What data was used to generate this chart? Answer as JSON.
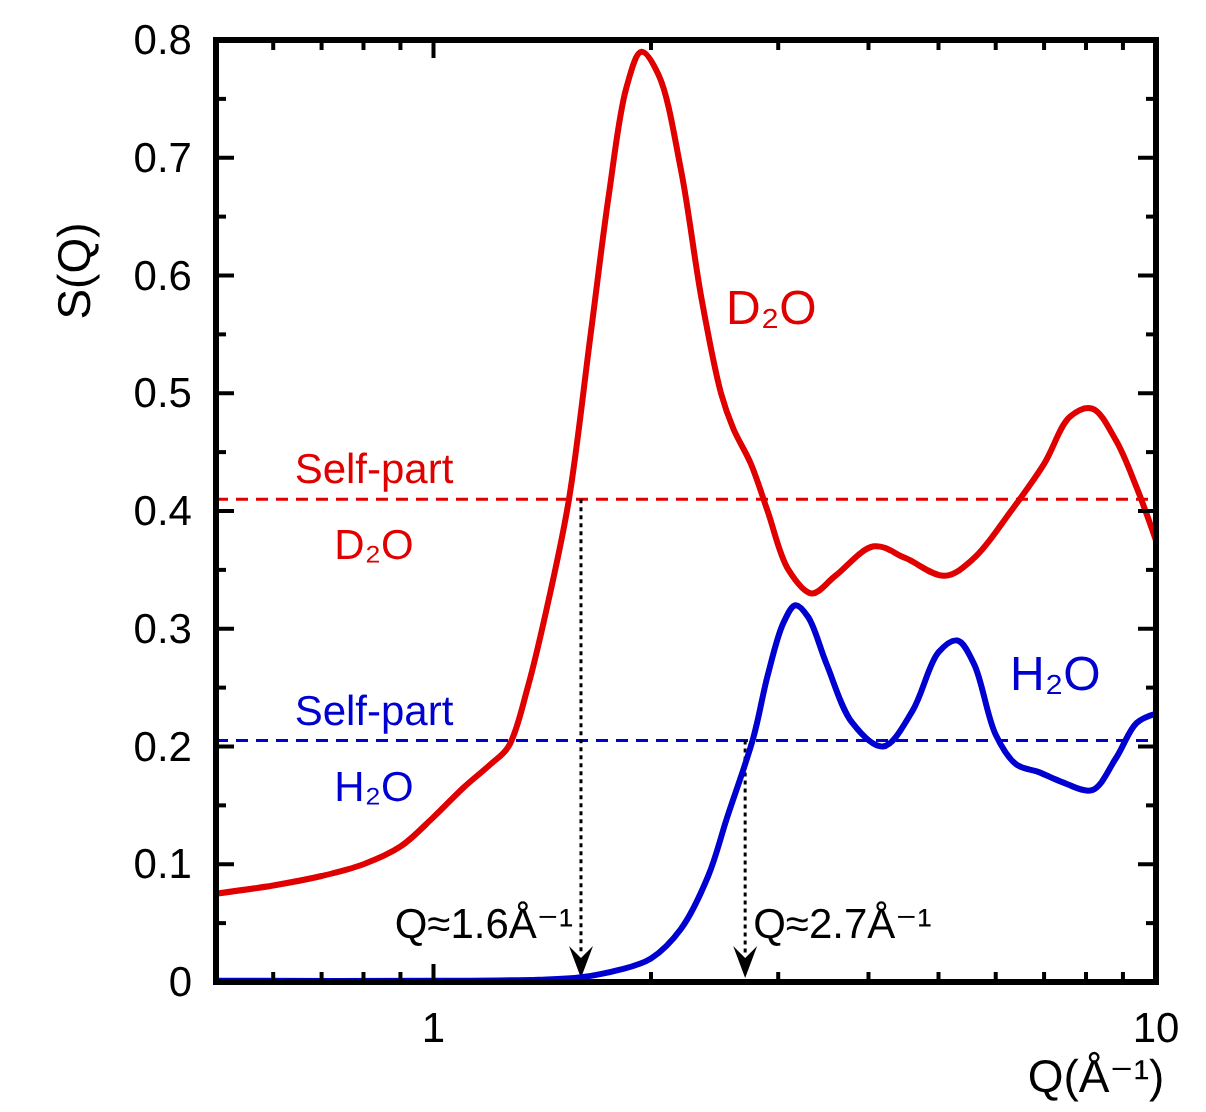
{
  "chart_data": {
    "type": "line",
    "xlabel": "Q(Å⁻¹)",
    "ylabel": "S(Q)",
    "log": "x",
    "xlim": [
      0.5,
      10
    ],
    "ylim": [
      0,
      0.8
    ],
    "xticks": [
      {
        "value": 0.5,
        "label": null
      },
      {
        "value": 0.6,
        "label": null
      },
      {
        "value": 0.7,
        "label": null
      },
      {
        "value": 0.8,
        "label": null
      },
      {
        "value": 0.9,
        "label": null
      },
      1,
      {
        "value": 2,
        "label": null
      },
      {
        "value": 3,
        "label": null
      },
      {
        "value": 4,
        "label": null
      },
      {
        "value": 5,
        "label": null
      },
      {
        "value": 6,
        "label": null
      },
      {
        "value": 7,
        "label": null
      },
      {
        "value": 8,
        "label": null
      },
      {
        "value": 9,
        "label": null
      },
      10
    ],
    "yticks": [
      0,
      {
        "value": 0.05,
        "label": null
      },
      0.1,
      {
        "value": 0.15,
        "label": null
      },
      0.2,
      {
        "value": 0.25,
        "label": null
      },
      0.3,
      {
        "value": 0.35,
        "label": null
      },
      0.4,
      {
        "value": 0.45,
        "label": null
      },
      0.5,
      {
        "value": 0.55,
        "label": null
      },
      0.6,
      {
        "value": 0.65,
        "label": null
      },
      0.7,
      {
        "value": 0.75,
        "label": null
      },
      0.8
    ],
    "grid": false,
    "marker": "none",
    "line_style": "solid",
    "series": [
      {
        "name": "D₂O",
        "color": "#e00000",
        "x": [
          0.5,
          0.6,
          0.7,
          0.8,
          0.9,
          1.0,
          1.1,
          1.2,
          1.27,
          1.35,
          1.45,
          1.54,
          1.65,
          1.75,
          1.85,
          1.94,
          2.05,
          2.2,
          2.35,
          2.5,
          2.6,
          2.75,
          2.9,
          3.1,
          3.34,
          3.6,
          4.07,
          4.5,
          5.1,
          5.6,
          6.3,
          7.0,
          7.6,
          8.16,
          8.8,
          9.4,
          10
        ],
        "values": [
          0.075,
          0.082,
          0.09,
          0.1,
          0.115,
          0.14,
          0.165,
          0.185,
          0.2,
          0.25,
          0.33,
          0.41,
          0.55,
          0.67,
          0.76,
          0.79,
          0.77,
          0.69,
          0.58,
          0.5,
          0.47,
          0.44,
          0.4,
          0.35,
          0.33,
          0.345,
          0.37,
          0.36,
          0.345,
          0.36,
          0.4,
          0.44,
          0.48,
          0.487,
          0.46,
          0.42,
          0.375
        ]
      },
      {
        "name": "H₂O",
        "color": "#0000d0",
        "x": [
          0.5,
          1.0,
          1.4,
          1.6,
          1.8,
          2.0,
          2.2,
          2.4,
          2.55,
          2.77,
          2.9,
          3.05,
          3.17,
          3.3,
          3.5,
          3.8,
          4.19,
          4.6,
          5.0,
          5.31,
          5.6,
          6.0,
          6.4,
          6.9,
          7.4,
          8.16,
          8.8,
          9.4,
          10
        ],
        "values": [
          0.001,
          0.001,
          0.002,
          0.004,
          0.01,
          0.02,
          0.045,
          0.09,
          0.14,
          0.207,
          0.26,
          0.305,
          0.32,
          0.31,
          0.27,
          0.22,
          0.2,
          0.23,
          0.28,
          0.29,
          0.27,
          0.21,
          0.185,
          0.178,
          0.17,
          0.163,
          0.19,
          0.22,
          0.228
        ]
      }
    ],
    "ref_lines": [
      {
        "axis": "y",
        "value": 0.41,
        "label": "Self-part D₂O",
        "color": "#e00000",
        "line_style": "dashed"
      },
      {
        "axis": "y",
        "value": 0.205,
        "label": "Self-part H₂O",
        "color": "#0000d0",
        "line_style": "dashed"
      }
    ],
    "annotations": [
      {
        "text": "Q≈1.6Å⁻¹",
        "x": 1.6,
        "y": 0.41
      },
      {
        "text": "Q≈2.7Å⁻¹",
        "x": 2.7,
        "y": 0.205
      }
    ]
  }
}
